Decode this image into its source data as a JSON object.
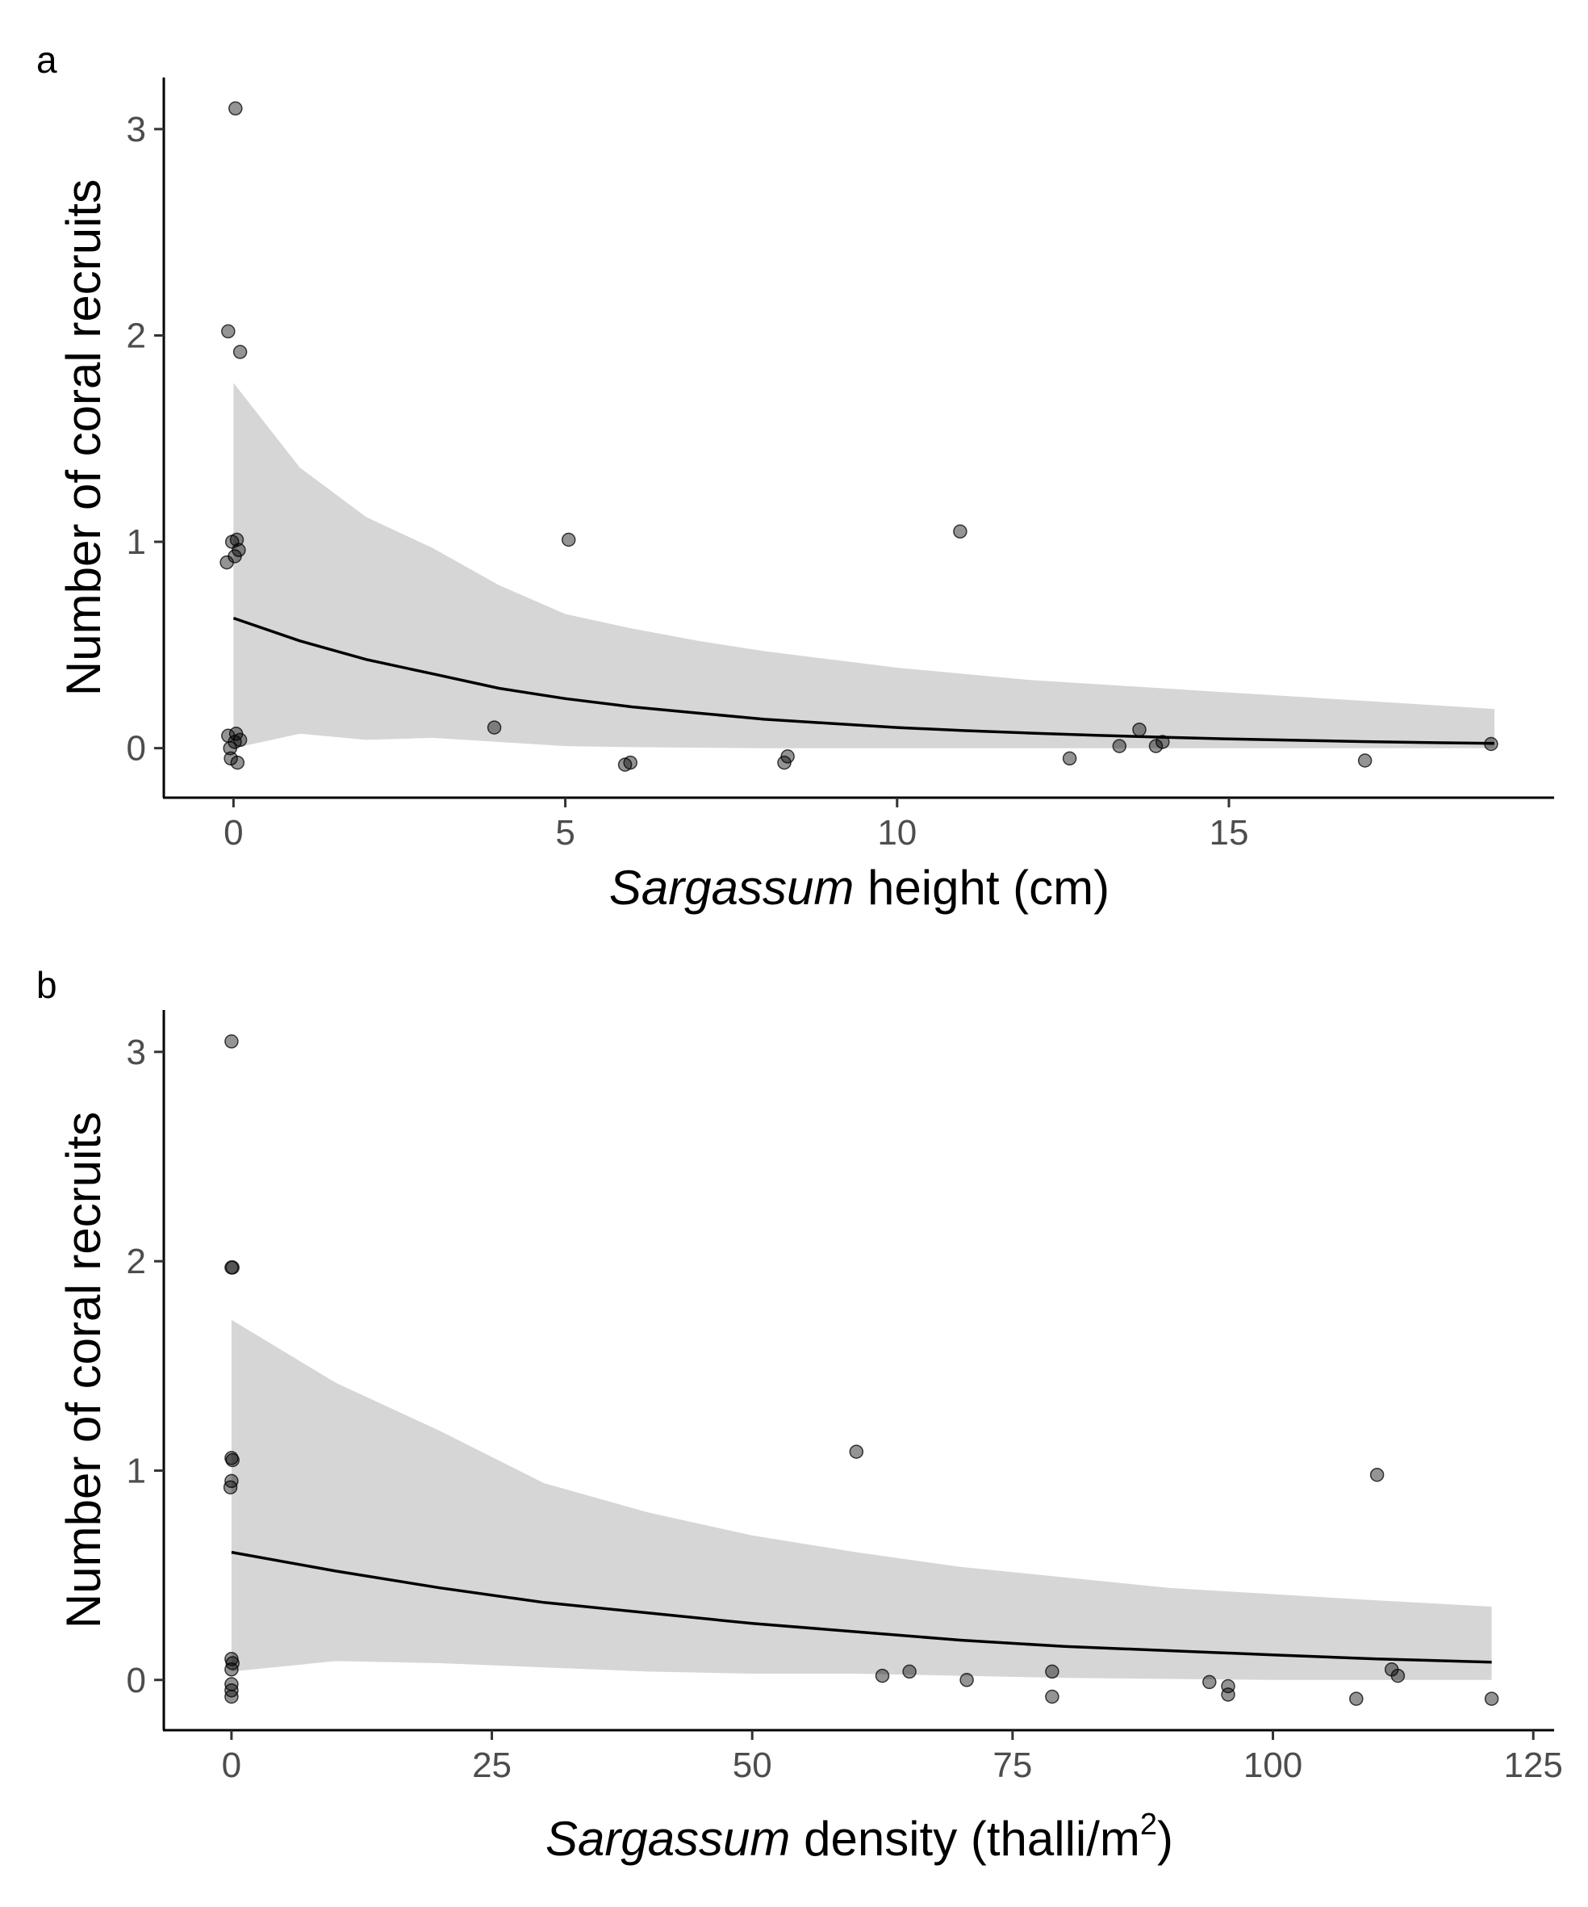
{
  "chart_data": [
    {
      "type": "scatter",
      "panel_label": "a",
      "xlabel_italic": "Sargassum",
      "xlabel_rest": " height (cm)",
      "ylabel": "Number of coral recruits",
      "xlim": [
        -1.05,
        19.9
      ],
      "ylim": [
        -0.24,
        3.25
      ],
      "x_ticks": [
        0,
        5,
        10,
        15
      ],
      "x_tick_labels": [
        "0",
        "5",
        "10",
        "15"
      ],
      "y_ticks": [
        0,
        1,
        2,
        3
      ],
      "y_tick_labels": [
        "0",
        "1",
        "2",
        "3"
      ],
      "grid": false,
      "legend": "none",
      "points": [
        {
          "x": 0.03,
          "y": 3.1
        },
        {
          "x": -0.08,
          "y": 2.02
        },
        {
          "x": 0.1,
          "y": 1.92
        },
        {
          "x": -0.02,
          "y": 1.0
        },
        {
          "x": 0.05,
          "y": 1.01
        },
        {
          "x": 0.08,
          "y": 0.96
        },
        {
          "x": -0.1,
          "y": 0.9
        },
        {
          "x": 0.02,
          "y": 0.93
        },
        {
          "x": -0.08,
          "y": 0.06
        },
        {
          "x": 0.04,
          "y": 0.07
        },
        {
          "x": 0.1,
          "y": 0.04
        },
        {
          "x": -0.05,
          "y": 0.0
        },
        {
          "x": 0.02,
          "y": 0.03
        },
        {
          "x": -0.04,
          "y": -0.05
        },
        {
          "x": 0.06,
          "y": -0.07
        },
        {
          "x": 3.93,
          "y": 0.1
        },
        {
          "x": 5.05,
          "y": 1.01
        },
        {
          "x": 5.9,
          "y": -0.08
        },
        {
          "x": 5.98,
          "y": -0.07
        },
        {
          "x": 8.3,
          "y": -0.07
        },
        {
          "x": 8.35,
          "y": -0.04
        },
        {
          "x": 10.95,
          "y": 1.05
        },
        {
          "x": 12.6,
          "y": -0.05
        },
        {
          "x": 13.35,
          "y": 0.01
        },
        {
          "x": 13.65,
          "y": 0.09
        },
        {
          "x": 13.9,
          "y": 0.01
        },
        {
          "x": 14.0,
          "y": 0.03
        },
        {
          "x": 17.05,
          "y": -0.06
        },
        {
          "x": 18.95,
          "y": 0.02
        }
      ],
      "fit_x": [
        0,
        1,
        2,
        3,
        4,
        5,
        6,
        7,
        8,
        9,
        10,
        11,
        12,
        13,
        14,
        15,
        16,
        17,
        18,
        19
      ],
      "fit_y": [
        0.63,
        0.52,
        0.43,
        0.36,
        0.29,
        0.24,
        0.2,
        0.17,
        0.14,
        0.12,
        0.1,
        0.085,
        0.073,
        0.062,
        0.053,
        0.045,
        0.038,
        0.032,
        0.027,
        0.023
      ],
      "ribbon_upper": [
        1.77,
        1.36,
        1.12,
        0.97,
        0.79,
        0.65,
        0.58,
        0.52,
        0.47,
        0.43,
        0.39,
        0.36,
        0.33,
        0.31,
        0.29,
        0.27,
        0.25,
        0.23,
        0.21,
        0.19
      ],
      "ribbon_lower": [
        0.0,
        0.07,
        0.04,
        0.05,
        0.03,
        0.01,
        0.005,
        0.002,
        0.0,
        0.0,
        0.0,
        0.0,
        0.0,
        0.0,
        0.0,
        0.0,
        0.0,
        0.0,
        0.0,
        0.0
      ]
    },
    {
      "type": "scatter",
      "panel_label": "b",
      "xlabel_italic": "Sargassum",
      "xlabel_rest": " density (thalli/m",
      "xlabel_sup": "2",
      "xlabel_end": ")",
      "ylabel": "Number of coral recruits",
      "xlim": [
        -6.5,
        127
      ],
      "ylim": [
        -0.24,
        3.2
      ],
      "x_ticks": [
        0,
        25,
        50,
        75,
        100,
        125
      ],
      "x_tick_labels": [
        "0",
        "25",
        "50",
        "75",
        "100",
        "125"
      ],
      "y_ticks": [
        0,
        1,
        2,
        3
      ],
      "y_tick_labels": [
        "0",
        "1",
        "2",
        "3"
      ],
      "grid": false,
      "legend": "none",
      "points": [
        {
          "x": 0.0,
          "y": 3.05
        },
        {
          "x": 0.0,
          "y": 1.97
        },
        {
          "x": 0.1,
          "y": 1.97
        },
        {
          "x": 0.0,
          "y": 1.06
        },
        {
          "x": 0.1,
          "y": 1.05
        },
        {
          "x": 0.0,
          "y": 0.95
        },
        {
          "x": -0.1,
          "y": 0.92
        },
        {
          "x": 0.0,
          "y": 0.1
        },
        {
          "x": 0.1,
          "y": 0.08
        },
        {
          "x": 0.0,
          "y": 0.05
        },
        {
          "x": 0.0,
          "y": -0.02
        },
        {
          "x": 0.0,
          "y": -0.05
        },
        {
          "x": 0.0,
          "y": -0.08
        },
        {
          "x": 60.0,
          "y": 1.09
        },
        {
          "x": 62.5,
          "y": 0.02
        },
        {
          "x": 65.1,
          "y": 0.04
        },
        {
          "x": 70.6,
          "y": 0.0
        },
        {
          "x": 78.8,
          "y": 0.04
        },
        {
          "x": 78.8,
          "y": -0.08
        },
        {
          "x": 93.9,
          "y": -0.01
        },
        {
          "x": 95.7,
          "y": -0.03
        },
        {
          "x": 95.7,
          "y": -0.07
        },
        {
          "x": 108.0,
          "y": -0.09
        },
        {
          "x": 110.0,
          "y": 0.98
        },
        {
          "x": 111.4,
          "y": 0.05
        },
        {
          "x": 112.0,
          "y": 0.02
        },
        {
          "x": 121.0,
          "y": -0.09
        }
      ],
      "fit_x": [
        0,
        10,
        20,
        30,
        40,
        50,
        60,
        70,
        80,
        90,
        100,
        110,
        121
      ],
      "fit_y": [
        0.61,
        0.52,
        0.44,
        0.37,
        0.32,
        0.27,
        0.23,
        0.19,
        0.16,
        0.14,
        0.12,
        0.1,
        0.085
      ],
      "ribbon_upper": [
        1.72,
        1.42,
        1.19,
        0.94,
        0.8,
        0.69,
        0.61,
        0.54,
        0.49,
        0.44,
        0.41,
        0.38,
        0.35
      ],
      "ribbon_lower": [
        0.04,
        0.09,
        0.08,
        0.06,
        0.04,
        0.03,
        0.03,
        0.02,
        0.01,
        0.005,
        0.0,
        0.0,
        0.0
      ]
    }
  ]
}
